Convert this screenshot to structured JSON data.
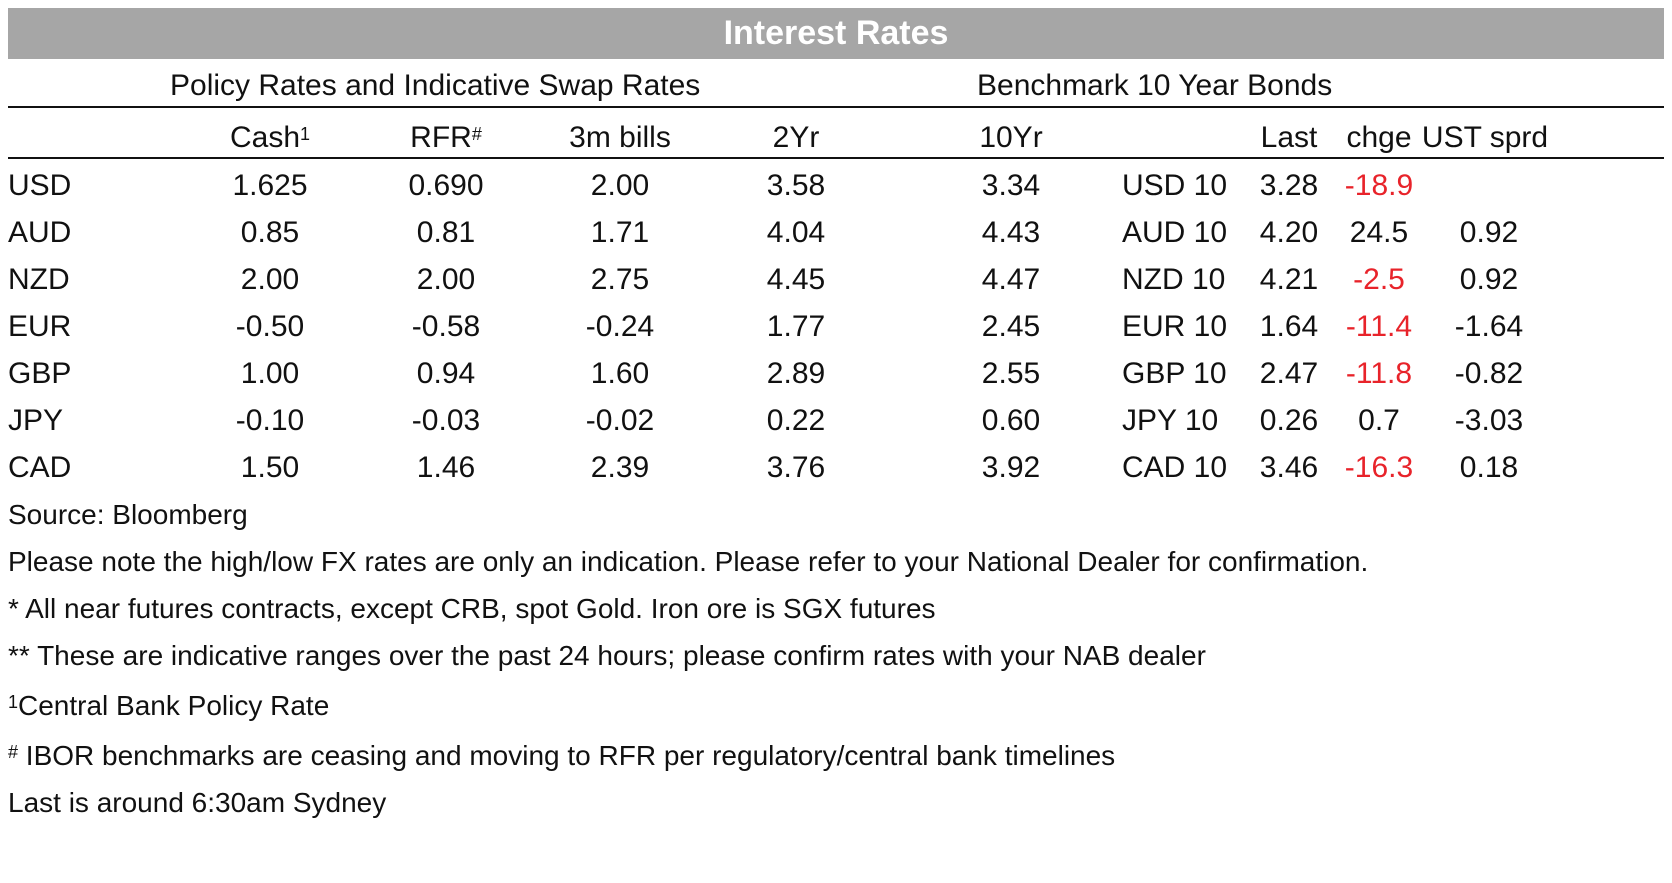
{
  "title": "Interest Rates",
  "section_left": "Policy Rates and Indicative Swap Rates",
  "section_right": "Benchmark 10 Year Bonds",
  "headers": {
    "cash": "Cash",
    "cash_sup": "1",
    "rfr": "RFR",
    "rfr_sup": "#",
    "bills": "3m bills",
    "two_yr": "2Yr",
    "ten_yr": "10Yr",
    "last": "Last",
    "chge": "chge",
    "ust": "UST sprd"
  },
  "rows": [
    {
      "ccy": "USD",
      "cash": "1.625",
      "rfr": "0.690",
      "bills": "2.00",
      "two_yr": "3.58",
      "ten_yr": "3.34",
      "bond": "USD 10",
      "last": "3.28",
      "chge": "-18.9",
      "ust": ""
    },
    {
      "ccy": "AUD",
      "cash": "0.85",
      "rfr": "0.81",
      "bills": "1.71",
      "two_yr": "4.04",
      "ten_yr": "4.43",
      "bond": "AUD 10",
      "last": "4.20",
      "chge": "24.5",
      "ust": "0.92"
    },
    {
      "ccy": "NZD",
      "cash": "2.00",
      "rfr": "2.00",
      "bills": "2.75",
      "two_yr": "4.45",
      "ten_yr": "4.47",
      "bond": "NZD 10",
      "last": "4.21",
      "chge": "-2.5",
      "ust": "0.92"
    },
    {
      "ccy": "EUR",
      "cash": "-0.50",
      "rfr": "-0.58",
      "bills": "-0.24",
      "two_yr": "1.77",
      "ten_yr": "2.45",
      "bond": "EUR 10",
      "last": "1.64",
      "chge": "-11.4",
      "ust": "-1.64"
    },
    {
      "ccy": "GBP",
      "cash": "1.00",
      "rfr": "0.94",
      "bills": "1.60",
      "two_yr": "2.89",
      "ten_yr": "2.55",
      "bond": "GBP 10",
      "last": "2.47",
      "chge": "-11.8",
      "ust": "-0.82"
    },
    {
      "ccy": "JPY",
      "cash": "-0.10",
      "rfr": "-0.03",
      "bills": "-0.02",
      "two_yr": "0.22",
      "ten_yr": "0.60",
      "bond": "JPY 10",
      "last": "0.26",
      "chge": "0.7",
      "ust": "-3.03"
    },
    {
      "ccy": "CAD",
      "cash": "1.50",
      "rfr": "1.46",
      "bills": "2.39",
      "two_yr": "3.76",
      "ten_yr": "3.92",
      "bond": "CAD 10",
      "last": "3.46",
      "chge": "-16.3",
      "ust": "0.18"
    }
  ],
  "notes": {
    "source": "Source: Bloomberg",
    "fx": "Please note the high/low FX rates are only an indication. Please refer to your National Dealer for confirmation.",
    "futures": "* All near futures contracts, except CRB, spot Gold.  Iron ore is SGX futures",
    "ranges": "** These are indicative ranges over the past 24 hours; please confirm rates with your NAB dealer",
    "central_sup": "1",
    "central": "Central Bank Policy Rate",
    "ibor_sup": "#",
    "ibor": " IBOR benchmarks are ceasing and moving to RFR per regulatory/central bank timelines",
    "last": "Last is around 6:30am Sydney"
  },
  "colors": {
    "banner": "#a6a6a6",
    "negative": "#e8232a"
  }
}
